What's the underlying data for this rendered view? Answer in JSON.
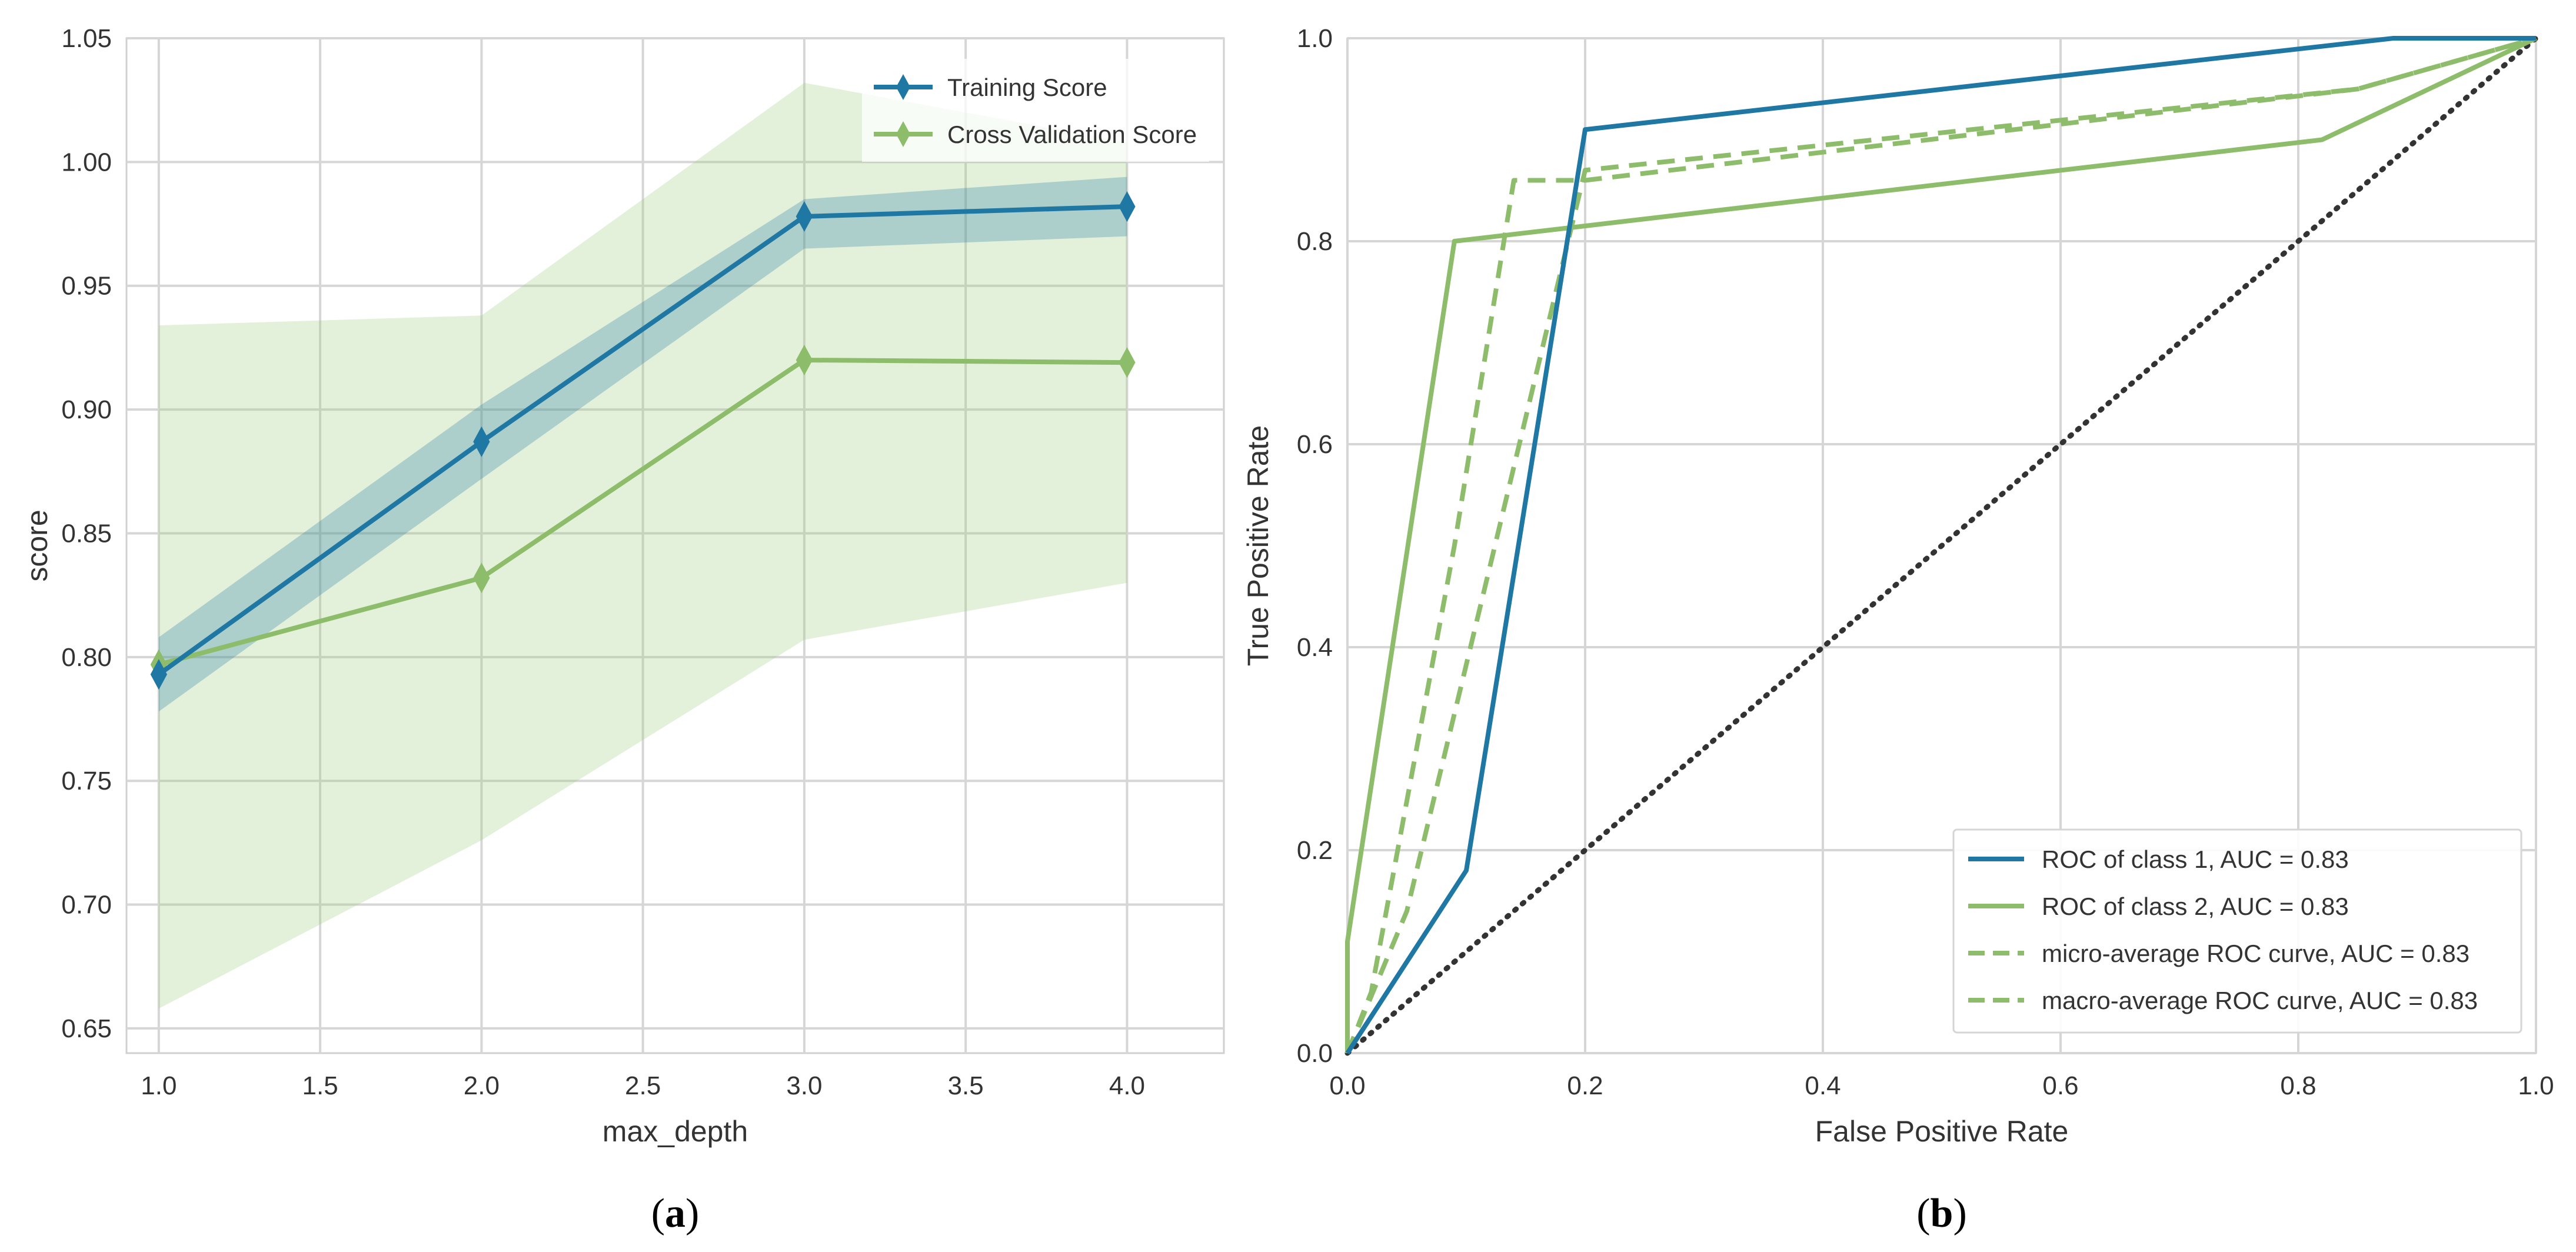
{
  "chart_data": [
    {
      "type": "line",
      "panel_caption_open": "(",
      "panel_caption_letter": "a",
      "panel_caption_close": ")",
      "xlabel": "max_depth",
      "ylabel": "score",
      "xlim": [
        0.9,
        4.3
      ],
      "ylim": [
        0.64,
        1.05
      ],
      "xticks": [
        1.0,
        1.5,
        2.0,
        2.5,
        3.0,
        3.5,
        4.0
      ],
      "xtick_labels": [
        "1.0",
        "1.5",
        "2.0",
        "2.5",
        "3.0",
        "3.5",
        "4.0"
      ],
      "yticks": [
        0.65,
        0.7,
        0.75,
        0.8,
        0.85,
        0.9,
        0.95,
        1.0,
        1.05
      ],
      "ytick_labels": [
        "0.65",
        "0.70",
        "0.75",
        "0.80",
        "0.85",
        "0.90",
        "0.95",
        "1.00",
        "1.05"
      ],
      "legend_position": "top-right",
      "x": [
        1.0,
        2.0,
        3.0,
        4.0
      ],
      "series": [
        {
          "name": "Training Score",
          "color": "#1f77a4",
          "band_color": "#1f77a4",
          "band_opacity": 0.28,
          "values": [
            0.793,
            0.887,
            0.978,
            0.982
          ],
          "lower": [
            0.778,
            0.872,
            0.965,
            0.97
          ],
          "upper": [
            0.808,
            0.902,
            0.985,
            0.994
          ]
        },
        {
          "name": "Cross Validation Score",
          "color": "#8dbd6a",
          "band_color": "#9ccb7a",
          "band_opacity": 0.28,
          "values": [
            0.797,
            0.832,
            0.92,
            0.919
          ],
          "lower": [
            0.658,
            0.726,
            0.807,
            0.83
          ],
          "upper": [
            0.934,
            0.938,
            1.032,
            1.008
          ]
        }
      ]
    },
    {
      "type": "line",
      "panel_caption_open": "(",
      "panel_caption_letter": "b",
      "panel_caption_close": ")",
      "xlabel": "False Positive Rate",
      "ylabel": "True Positive Rate",
      "xlim": [
        0.0,
        1.0
      ],
      "ylim": [
        0.0,
        1.0
      ],
      "xticks": [
        0.0,
        0.2,
        0.4,
        0.6,
        0.8,
        1.0
      ],
      "xtick_labels": [
        "0.0",
        "0.2",
        "0.4",
        "0.6",
        "0.8",
        "1.0"
      ],
      "yticks": [
        0.0,
        0.2,
        0.4,
        0.6,
        0.8,
        1.0
      ],
      "ytick_labels": [
        "0.0",
        "0.2",
        "0.4",
        "0.6",
        "0.8",
        "1.0"
      ],
      "legend_position": "bottom-right",
      "series": [
        {
          "name": "ROC of class 1, AUC = 0.83",
          "color": "#1f77a4",
          "dashed": false,
          "x": [
            0.0,
            0.1,
            0.2,
            0.88,
            1.0
          ],
          "y": [
            0.0,
            0.18,
            0.91,
            1.0,
            1.0
          ]
        },
        {
          "name": "ROC of class 2, AUC = 0.83",
          "color": "#8dbd6a",
          "dashed": false,
          "x": [
            0.0,
            0.0,
            0.09,
            0.82,
            1.0
          ],
          "y": [
            0.0,
            0.11,
            0.8,
            0.9,
            1.0
          ]
        },
        {
          "name": "micro-average ROC curve, AUC = 0.83",
          "color": "#8dbd6a",
          "dashed": true,
          "x": [
            0.0,
            0.02,
            0.09,
            0.14,
            0.2,
            0.85,
            1.0
          ],
          "y": [
            0.0,
            0.06,
            0.5,
            0.86,
            0.86,
            0.95,
            1.0
          ]
        },
        {
          "name": "macro-average ROC curve, AUC = 0.83",
          "color": "#8dbd6a",
          "dashed": true,
          "x": [
            0.0,
            0.05,
            0.12,
            0.2,
            0.85,
            1.0
          ],
          "y": [
            0.0,
            0.14,
            0.48,
            0.87,
            0.95,
            1.0
          ]
        },
        {
          "name": "chance",
          "color": "#333333",
          "dotted": true,
          "x": [
            0.0,
            1.0
          ],
          "y": [
            0.0,
            1.0
          ]
        }
      ]
    }
  ]
}
